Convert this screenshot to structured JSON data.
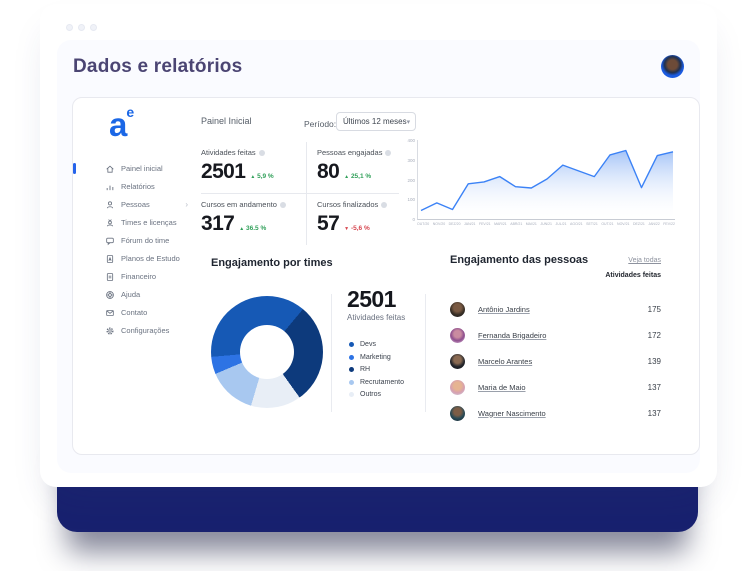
{
  "header": {
    "title": "Dados e relatórios"
  },
  "sidebar": {
    "logo_text": "a",
    "logo_sup": "e",
    "items": [
      {
        "label": "Painel inicial",
        "icon": "home-icon",
        "active": true
      },
      {
        "label": "Relatórios",
        "icon": "bar-chart-icon"
      },
      {
        "label": "Pessoas",
        "icon": "person-icon"
      },
      {
        "label": "Times e licenças",
        "icon": "team-icon"
      },
      {
        "label": "Fórum do time",
        "icon": "chat-icon"
      },
      {
        "label": "Planos de Estudo",
        "icon": "study-plan-icon"
      },
      {
        "label": "Financeiro",
        "icon": "document-icon"
      },
      {
        "label": "Ajuda",
        "icon": "help-icon"
      },
      {
        "label": "Contato",
        "icon": "mail-icon"
      },
      {
        "label": "Configurações",
        "icon": "gear-icon"
      }
    ]
  },
  "toolbar": {
    "section_label": "Painel Inicial",
    "period_label": "Período:",
    "period_value": "Últimos 12 meses",
    "caret": "▾"
  },
  "kpis": [
    {
      "label": "Atividades feitas",
      "value": "2501",
      "arrow": "▲",
      "delta": "5,9 %",
      "direction": "up"
    },
    {
      "label": "Pessoas engajadas",
      "value": "80",
      "arrow": "▲",
      "delta": "25,1 %",
      "direction": "up"
    },
    {
      "label": "Cursos em andamento",
      "value": "317",
      "arrow": "▲",
      "delta": "36.5 %",
      "direction": "up"
    },
    {
      "label": "Cursos finalizados",
      "value": "57",
      "arrow": "▼",
      "delta": "-5,6 %",
      "direction": "down"
    }
  ],
  "chart_data": [
    {
      "type": "area",
      "x": [
        "OUT/20",
        "NOV/20",
        "DEZ/20",
        "JAN/21",
        "FEV/21",
        "MAR/21",
        "ABR/21",
        "MAI/21",
        "JUN/21",
        "JUL/21",
        "AGO/21",
        "SET/21",
        "OUT/21",
        "NOV/21",
        "DEZ/21",
        "JAN/22",
        "FEV/22"
      ],
      "values": [
        50,
        90,
        55,
        190,
        200,
        228,
        175,
        168,
        215,
        288,
        258,
        228,
        342,
        365,
        170,
        338,
        358
      ],
      "y_ticks": [
        400,
        300,
        200,
        100,
        0
      ],
      "ylim": [
        0,
        420
      ],
      "line_color": "#3b82f6",
      "legend_position": "none",
      "grid": false
    },
    {
      "type": "donut",
      "title": "Engajamento por times",
      "center_value": "2501",
      "center_label": "Atividades feitas",
      "start_angle": 265,
      "slices_clockwise": [
        {
          "label": "Devs",
          "value": 37.5,
          "color": "#1659b5"
        },
        {
          "label": "RH",
          "value": 29.0,
          "color": "#0d3a7c"
        },
        {
          "label": "Outros",
          "value": 14.5,
          "color": "#e8eef6"
        },
        {
          "label": "Recrutamento",
          "value": 14.0,
          "color": "#a8c8f0"
        },
        {
          "label": "Marketing",
          "value": 5.0,
          "color": "#2d73e4"
        }
      ]
    }
  ],
  "teams_section": {
    "title": "Engajamento por times",
    "total": "2501",
    "total_label": "Atividades feitas",
    "legend": [
      {
        "label": "Devs",
        "color": "#1659b5"
      },
      {
        "label": "Marketing",
        "color": "#2d73e4"
      },
      {
        "label": "RH",
        "color": "#0d3a7c"
      },
      {
        "label": "Recrutamento",
        "color": "#a8c8f0"
      },
      {
        "label": "Outros",
        "color": "#e8eef6"
      }
    ]
  },
  "people_section": {
    "title": "Engajamento das pessoas",
    "link_label": "Veja todas",
    "column_header": "Atividades feitas",
    "rows": [
      {
        "name": "Antônio Jardins",
        "value": "175"
      },
      {
        "name": "Fernanda Brigadeiro",
        "value": "172"
      },
      {
        "name": "Marcelo Arantes",
        "value": "139"
      },
      {
        "name": "Maria de Maio",
        "value": "137"
      },
      {
        "name": "Wagner Nascimento",
        "value": "137"
      }
    ]
  }
}
